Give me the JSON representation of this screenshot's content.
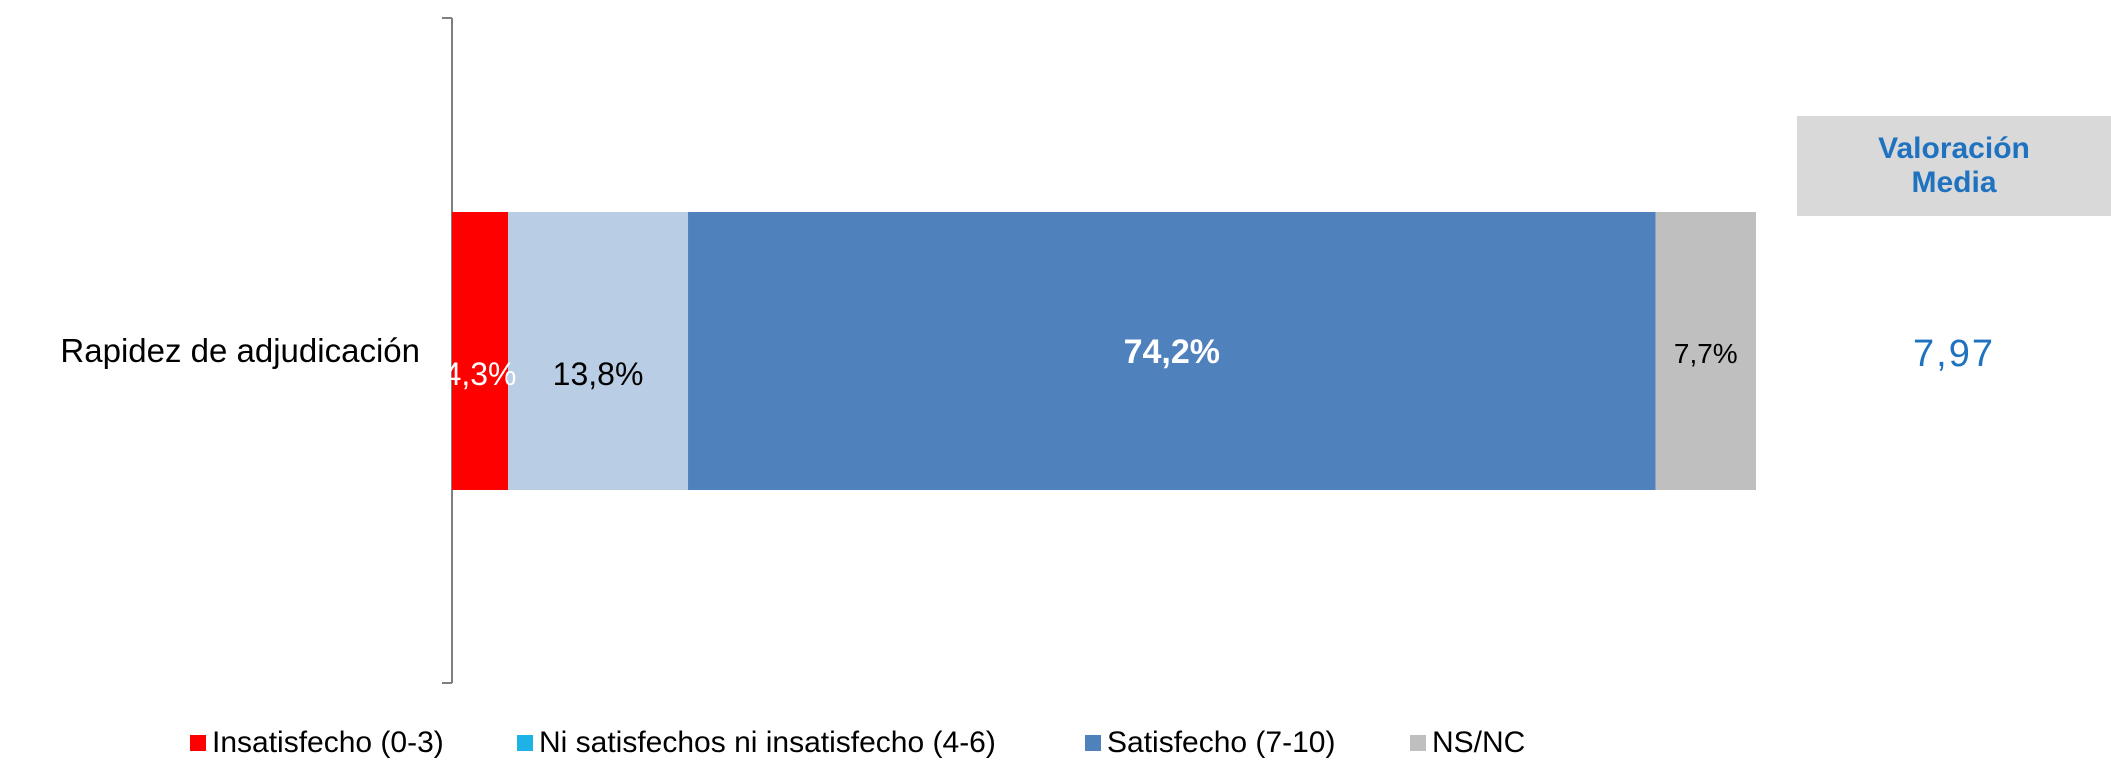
{
  "chart_data": {
    "type": "bar",
    "orientation": "horizontal",
    "stacked": true,
    "categories": [
      "Rapidez de adjudicación"
    ],
    "series": [
      {
        "name": "Insatisfecho (0-3)",
        "values": [
          4.3
        ],
        "label": "4,3%",
        "color": "#ff0000",
        "label_color": "#ffffff",
        "label_bold": false
      },
      {
        "name": "Ni satisfechos ni insatisfecho (4-6)",
        "values": [
          13.8
        ],
        "label": "13,8%",
        "color": "#b9cde4",
        "legend_color": "#1fb2e6",
        "label_color": "#000000",
        "label_bold": false
      },
      {
        "name": "Satisfecho (7-10)",
        "values": [
          74.2
        ],
        "label": "74,2%",
        "color": "#4f81bd",
        "label_color": "#ffffff",
        "label_bold": true
      },
      {
        "name": "NS/NC",
        "values": [
          7.7
        ],
        "label": "7,7%",
        "color": "#bfbfbf",
        "label_color": "#000000",
        "label_bold": false
      }
    ],
    "xlim": [
      0,
      100
    ],
    "grid": false,
    "legend_position": "bottom"
  },
  "side_panel": {
    "header": "Valoración Media",
    "value": "7,97",
    "accent_color": "#1f72bf"
  }
}
